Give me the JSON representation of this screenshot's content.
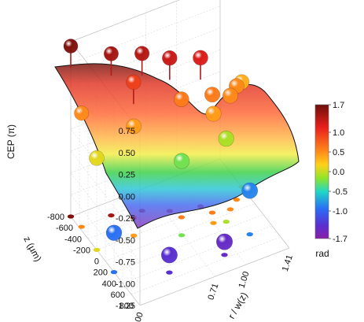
{
  "chart_data": {
    "type": "surface3d-scatter",
    "title": "",
    "zlabel": "CEP (π)",
    "xlabel": "r / w(z)",
    "ylabel": "z (µm)",
    "zticks": [
      "0.75",
      "0.50",
      "0.25",
      "0.00",
      "-0.25",
      "-0.50",
      "-0.75",
      "-1.00",
      "-1.25"
    ],
    "zlim": [
      -1.25,
      0.75
    ],
    "xticks": [
      "0.00",
      "0.71",
      "1.00",
      "1.41"
    ],
    "xlim": [
      0,
      1.41
    ],
    "yticks": [
      "-800",
      "-600",
      "-400",
      "-200",
      "0",
      "200",
      "400",
      "600",
      "800"
    ],
    "ylim": [
      -800,
      800
    ],
    "colorbar": {
      "label": "rad",
      "ticks": [
        "1.7",
        "1.0",
        "0.5",
        "0.0",
        "-0.5",
        "-1.0",
        "-1.7"
      ],
      "range": [
        -1.7,
        1.7
      ]
    },
    "points": [
      {
        "x": 0.0,
        "y": -800,
        "z": 0.7
      },
      {
        "x": 0.3,
        "y": -600,
        "z": 0.6
      },
      {
        "x": 0.55,
        "y": -500,
        "z": 0.55
      },
      {
        "x": 0.75,
        "y": -350,
        "z": 0.5
      },
      {
        "x": 1.0,
        "y": -250,
        "z": 0.45
      },
      {
        "x": 0.02,
        "y": -600,
        "z": 0.05
      },
      {
        "x": 0.45,
        "y": -450,
        "z": 0.3
      },
      {
        "x": 0.8,
        "y": -200,
        "z": 0.1
      },
      {
        "x": 1.05,
        "y": -100,
        "z": 0.1
      },
      {
        "x": 1.2,
        "y": -50,
        "z": 0.05
      },
      {
        "x": 0.35,
        "y": -200,
        "z": 0.0
      },
      {
        "x": 1.3,
        "y": -150,
        "z": 0.05
      },
      {
        "x": 1.0,
        "y": 50,
        "z": 0.0
      },
      {
        "x": 0.0,
        "y": -200,
        "z": -0.2
      },
      {
        "x": 1.41,
        "y": -300,
        "z": -0.05
      },
      {
        "x": 0.7,
        "y": 50,
        "z": -0.4
      },
      {
        "x": 1.1,
        "y": 100,
        "z": -0.3
      },
      {
        "x": 0.0,
        "y": 200,
        "z": -0.8
      },
      {
        "x": 1.2,
        "y": 400,
        "z": -0.75
      },
      {
        "x": 0.4,
        "y": 500,
        "z": -1.05
      },
      {
        "x": 0.9,
        "y": 550,
        "z": -1.1
      }
    ]
  }
}
